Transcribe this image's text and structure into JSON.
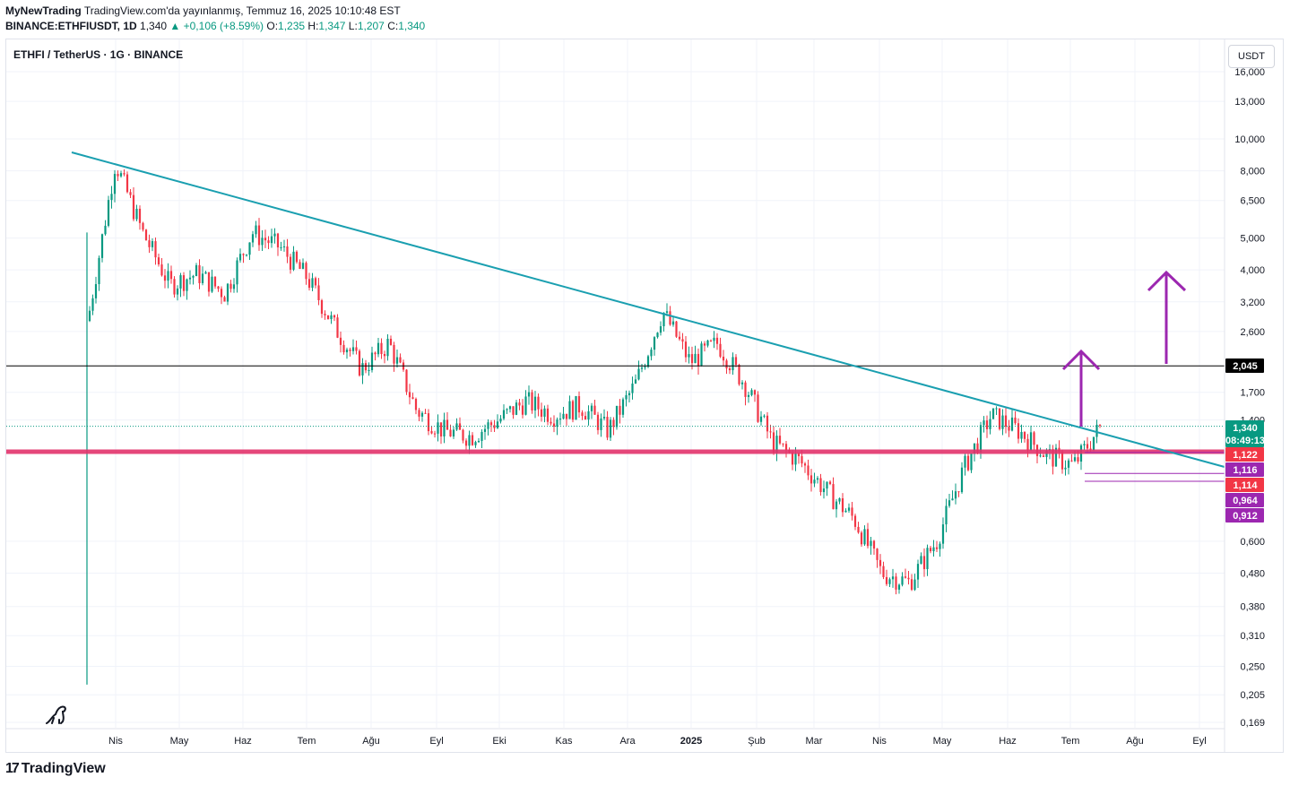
{
  "header": {
    "author": "MyNewTrading",
    "published": "TradingView.com'da yayınlanmış, Temmuz 16, 2025 10:10:48 EST",
    "symbol_line": "BINANCE:ETHFIUSDT, 1D",
    "last": "1,340",
    "change_arrow": "▲",
    "change": "+0,106 (+8.59%)",
    "o_label": "O:",
    "o": "1,235",
    "h_label": "H:",
    "h": "1,347",
    "l_label": "L:",
    "l": "1,207",
    "c_label": "C:",
    "c": "1,340"
  },
  "chart_title": "ETHFI / TetherUS · 1G · BINANCE",
  "currency_button": "USDT",
  "brand": "TradingView",
  "chart_data": {
    "type": "candlestick",
    "scale": "log",
    "x_ticks": [
      "Nis",
      "May",
      "Haz",
      "Tem",
      "Ağu",
      "Eyl",
      "Eki",
      "Kas",
      "Ara",
      "2025",
      "Şub",
      "Mar",
      "Nis",
      "May",
      "Haz",
      "Tem",
      "Ağu",
      "Eyl"
    ],
    "y_ticks": [
      "16,000",
      "13,000",
      "10,000",
      "8,000",
      "6,500",
      "5,000",
      "4,000",
      "3,200",
      "2,600",
      "2,045",
      "1,700",
      "1,400",
      "1,340",
      "1,122",
      "1,116",
      "1,114",
      "0,964",
      "0,912",
      "0,600",
      "0,480",
      "0,380",
      "0,310",
      "0,250",
      "0,205",
      "0,169"
    ],
    "ylim": [
      0.16,
      17
    ],
    "price_path": [
      [
        "Nis",
        2.8
      ],
      [
        "Nis",
        8.5
      ],
      [
        "Nis",
        5.2
      ],
      [
        "May",
        3.6
      ],
      [
        "May",
        3.9
      ],
      [
        "May",
        3.4
      ],
      [
        "Haz",
        5.2
      ],
      [
        "Haz",
        4.7
      ],
      [
        "Haz",
        3.8
      ],
      [
        "Tem",
        2.7
      ],
      [
        "Tem",
        2.0
      ],
      [
        "Tem",
        2.4
      ],
      [
        "Ağu",
        1.5
      ],
      [
        "Ağu",
        1.3
      ],
      [
        "Eyl",
        1.25
      ],
      [
        "Eyl",
        1.4
      ],
      [
        "Eki",
        1.6
      ],
      [
        "Eki",
        1.45
      ],
      [
        "Kas",
        1.55
      ],
      [
        "Kas",
        1.3
      ],
      [
        "Kas",
        1.8
      ],
      [
        "Ara",
        3.0
      ],
      [
        "Ara",
        2.1
      ],
      [
        "2025",
        2.4
      ],
      [
        "2025",
        1.8
      ],
      [
        "Şub",
        1.2
      ],
      [
        "Şub",
        1.05
      ],
      [
        "Mar",
        0.85
      ],
      [
        "Mar",
        0.7
      ],
      [
        "Nis",
        0.48
      ],
      [
        "Nis",
        0.45
      ],
      [
        "May",
        0.6
      ],
      [
        "May",
        1.0
      ],
      [
        "May",
        1.45
      ],
      [
        "Haz",
        1.3
      ],
      [
        "Haz",
        1.1
      ],
      [
        "Tem",
        1.02
      ],
      [
        "Tem",
        1.34
      ]
    ],
    "wick_low": 0.22,
    "horizontal_levels": [
      {
        "price": "2,045",
        "color": "#000000"
      },
      {
        "price": "1,122",
        "color": "#e2336b"
      },
      {
        "price": "1,116",
        "color": "#9c27b0"
      },
      {
        "price": "0,964",
        "color": "#9c27b0"
      },
      {
        "price": "0,912",
        "color": "#9c27b0"
      }
    ],
    "price_labels": [
      {
        "text": "2,045",
        "bg": "#000000"
      },
      {
        "text": "1,340",
        "bg": "#089981"
      },
      {
        "text": "08:49:13",
        "bg": "#089981"
      },
      {
        "text": "1,122",
        "bg": "#f23645"
      },
      {
        "text": "1,116",
        "bg": "#9c27b0"
      },
      {
        "text": "1,114",
        "bg": "#f23645"
      },
      {
        "text": "0,964",
        "bg": "#9c27b0"
      },
      {
        "text": "0,912",
        "bg": "#9c27b0"
      }
    ],
    "trendline_color": "#1a9fb0",
    "up_color": "#089981",
    "down_color": "#f23645",
    "arrow_color": "#9c27b0"
  }
}
